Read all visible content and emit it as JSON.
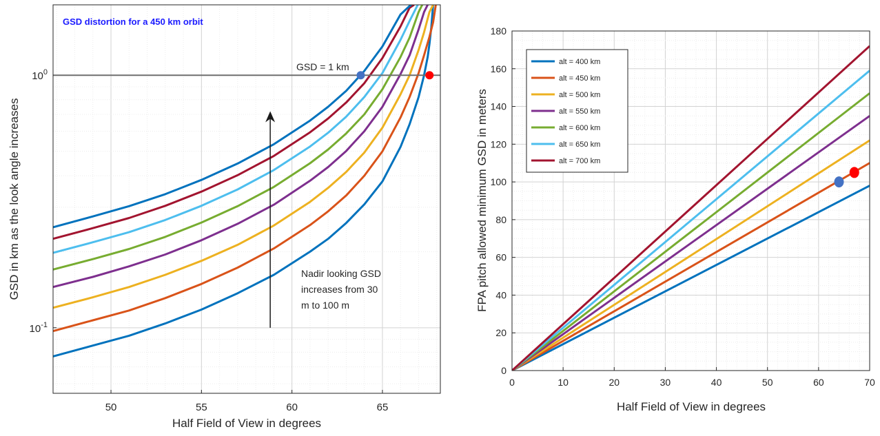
{
  "chart_data": [
    {
      "type": "line",
      "title": "GSD distortion for a 450 km orbit",
      "xlabel": "Half Field of View in degrees",
      "ylabel": "GSD in km as the look angle increases",
      "xlim": [
        46.8,
        68.2
      ],
      "ylim": [
        0.055,
        1.9
      ],
      "yscale": "log",
      "grid": true,
      "xticks": [
        50,
        55,
        60,
        65
      ],
      "yticks": [
        {
          "value": 0.1,
          "base": "10",
          "exp": "-1"
        },
        {
          "value": 1,
          "base": "10",
          "exp": "0"
        }
      ],
      "series": [
        {
          "color": "#0072BD",
          "x": [
            46.8,
            49,
            51,
            53,
            55,
            57,
            59,
            61,
            62,
            63,
            64,
            65,
            66,
            66.5,
            67,
            67.3,
            67.5,
            67.6,
            67.7,
            67.8
          ],
          "y": [
            0.077,
            0.085,
            0.093,
            0.104,
            0.118,
            0.137,
            0.162,
            0.2,
            0.225,
            0.26,
            0.308,
            0.38,
            0.52,
            0.64,
            0.82,
            1.0,
            1.18,
            1.33,
            1.55,
            1.9
          ]
        },
        {
          "color": "#D95319",
          "x": [
            46.8,
            49,
            51,
            53,
            55,
            57,
            59,
            61,
            62,
            63,
            64,
            65,
            66,
            66.5,
            67,
            67.3,
            67.6,
            67.8,
            67.95
          ],
          "y": [
            0.097,
            0.107,
            0.117,
            0.131,
            0.149,
            0.173,
            0.206,
            0.255,
            0.289,
            0.334,
            0.4,
            0.5,
            0.68,
            0.82,
            1.02,
            1.2,
            1.42,
            1.62,
            1.9
          ]
        },
        {
          "color": "#EDB120",
          "x": [
            46.8,
            49,
            51,
            53,
            55,
            57,
            59,
            61,
            62,
            63,
            64,
            65,
            66,
            66.5,
            67,
            67.3,
            67.6,
            67.8
          ],
          "y": [
            0.12,
            0.132,
            0.145,
            0.162,
            0.184,
            0.213,
            0.254,
            0.315,
            0.358,
            0.414,
            0.494,
            0.62,
            0.84,
            1.0,
            1.26,
            1.48,
            1.78,
            1.9
          ]
        },
        {
          "color": "#7E2F8E",
          "x": [
            46.8,
            49,
            51,
            53,
            55,
            57,
            59,
            61,
            62,
            63,
            64,
            65,
            66,
            66.5,
            67,
            67.3,
            67.5
          ],
          "y": [
            0.145,
            0.159,
            0.175,
            0.195,
            0.222,
            0.258,
            0.307,
            0.382,
            0.433,
            0.501,
            0.6,
            0.75,
            1.01,
            1.2,
            1.52,
            1.78,
            1.9
          ]
        },
        {
          "color": "#77AC30",
          "x": [
            46.8,
            49,
            51,
            53,
            55,
            57,
            59,
            61,
            62,
            63,
            64,
            65,
            66,
            66.5,
            67,
            67.2
          ],
          "y": [
            0.17,
            0.187,
            0.205,
            0.229,
            0.261,
            0.303,
            0.361,
            0.448,
            0.508,
            0.588,
            0.7,
            0.88,
            1.18,
            1.41,
            1.78,
            1.9
          ]
        },
        {
          "color": "#4DBEEE",
          "x": [
            46.8,
            49,
            51,
            53,
            55,
            57,
            59,
            61,
            62,
            63,
            64,
            65,
            66,
            66.5,
            66.95
          ],
          "y": [
            0.198,
            0.218,
            0.239,
            0.267,
            0.304,
            0.353,
            0.421,
            0.522,
            0.592,
            0.685,
            0.82,
            1.02,
            1.38,
            1.64,
            1.9
          ]
        },
        {
          "color": "#A2142F",
          "x": [
            46.8,
            49,
            51,
            53,
            55,
            57,
            59,
            61,
            62,
            63,
            64,
            65,
            66,
            66.5,
            66.75
          ],
          "y": [
            0.225,
            0.248,
            0.272,
            0.304,
            0.346,
            0.402,
            0.479,
            0.594,
            0.674,
            0.78,
            0.93,
            1.17,
            1.56,
            1.85,
            1.9
          ]
        },
        {
          "color": "#0072BD",
          "x": [
            46.8,
            49,
            51,
            53,
            55,
            57,
            59,
            61,
            62,
            63,
            64,
            65,
            66,
            66.5,
            66.6
          ],
          "y": [
            0.25,
            0.276,
            0.303,
            0.338,
            0.385,
            0.447,
            0.533,
            0.661,
            0.75,
            0.867,
            1.04,
            1.3,
            1.74,
            1.88,
            1.9
          ]
        }
      ],
      "reference_line": {
        "y": 1.0,
        "color": "#6e6e6e"
      },
      "points": [
        {
          "x": 63.8,
          "y": 1.0,
          "color": "#4472C4"
        },
        {
          "x": 67.6,
          "y": 1.0,
          "color": "#ff0000"
        }
      ],
      "annotations": {
        "gsd_label": "GSD = 1 km",
        "nadir_lines": [
          "Nadir looking GSD",
          "increases from 30",
          "m to 100 m"
        ]
      },
      "arrow": {
        "x": 58.8,
        "y_from": 0.1,
        "y_to": 0.72
      }
    },
    {
      "type": "line",
      "title": "",
      "xlabel": "Half Field of View in degrees",
      "ylabel": "FPA pitch allowed minimum GSD in meters",
      "xlim": [
        0,
        70
      ],
      "ylim": [
        0,
        180
      ],
      "grid": true,
      "legend": "top-left",
      "xticks": [
        0,
        10,
        20,
        30,
        40,
        50,
        60,
        70
      ],
      "yticks": [
        0,
        20,
        40,
        60,
        80,
        100,
        120,
        140,
        160,
        180
      ],
      "series": [
        {
          "name": "alt = 400 km",
          "color": "#0072BD",
          "x": [
            0,
            70
          ],
          "y": [
            0,
            98
          ]
        },
        {
          "name": "alt = 450 km",
          "color": "#D95319",
          "x": [
            0,
            70
          ],
          "y": [
            0,
            110
          ]
        },
        {
          "name": "alt = 500 km",
          "color": "#EDB120",
          "x": [
            0,
            70
          ],
          "y": [
            0,
            122
          ]
        },
        {
          "name": "alt = 550 km",
          "color": "#7E2F8E",
          "x": [
            0,
            70
          ],
          "y": [
            0,
            135
          ]
        },
        {
          "name": "alt = 600 km",
          "color": "#77AC30",
          "x": [
            0,
            70
          ],
          "y": [
            0,
            147
          ]
        },
        {
          "name": "alt = 650 km",
          "color": "#4DBEEE",
          "x": [
            0,
            70
          ],
          "y": [
            0,
            159
          ]
        },
        {
          "name": "alt = 700 km",
          "color": "#A2142F",
          "x": [
            0,
            70
          ],
          "y": [
            0,
            172
          ]
        }
      ],
      "points": [
        {
          "x": 64,
          "y": 100,
          "color": "#4472C4"
        },
        {
          "x": 67,
          "y": 105,
          "color": "#ff0000"
        }
      ]
    }
  ]
}
